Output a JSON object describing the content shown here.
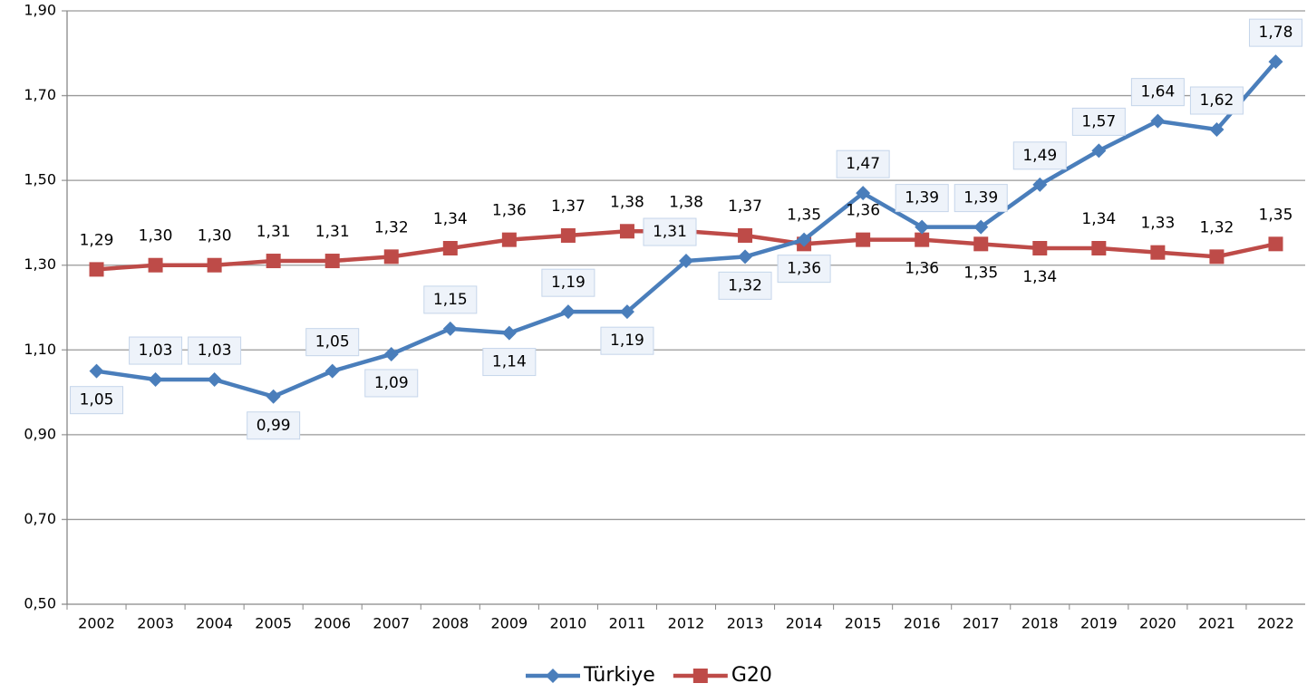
{
  "chart_data": {
    "type": "line",
    "categories": [
      "2002",
      "2003",
      "2004",
      "2005",
      "2006",
      "2007",
      "2008",
      "2009",
      "2010",
      "2011",
      "2012",
      "2013",
      "2014",
      "2015",
      "2016",
      "2017",
      "2018",
      "2019",
      "2020",
      "2021",
      "2022"
    ],
    "series": [
      {
        "name": "Türkiye",
        "color": "#4a7ebb",
        "marker": "diamond",
        "values": [
          1.05,
          1.03,
          1.03,
          0.99,
          1.05,
          1.09,
          1.15,
          1.14,
          1.19,
          1.19,
          1.31,
          1.32,
          1.36,
          1.47,
          1.39,
          1.39,
          1.49,
          1.57,
          1.64,
          1.62,
          1.78
        ],
        "value_labels": [
          "1,05",
          "1,03",
          "1,03",
          "0,99",
          "1,05",
          "1,09",
          "1,15",
          "1,14",
          "1,19",
          "1,19",
          "1,31",
          "1,32",
          "1,36",
          "1,47",
          "1,39",
          "1,39",
          "1,49",
          "1,57",
          "1,64",
          "1,62",
          "1,78"
        ]
      },
      {
        "name": "G20",
        "color": "#be4b48",
        "marker": "square",
        "values": [
          1.29,
          1.3,
          1.3,
          1.31,
          1.31,
          1.32,
          1.34,
          1.36,
          1.37,
          1.38,
          1.38,
          1.37,
          1.35,
          1.36,
          1.36,
          1.35,
          1.34,
          1.34,
          1.33,
          1.32,
          1.35
        ],
        "value_labels": [
          "1,29",
          "1,30",
          "1,30",
          "1,31",
          "1,31",
          "1,32",
          "1,34",
          "1,36",
          "1,37",
          "1,38",
          "1,38",
          "1,37",
          "1,35",
          "1,36",
          "1,36",
          "1,35",
          "1,34",
          "1,34",
          "1,33",
          "1,32",
          "1,35"
        ]
      }
    ],
    "ylim": [
      0.5,
      1.9
    ],
    "yticks": [
      {
        "value": 0.5,
        "label": "0,50"
      },
      {
        "value": 0.7,
        "label": "0,70"
      },
      {
        "value": 0.9,
        "label": "0,90"
      },
      {
        "value": 1.1,
        "label": "1,10"
      },
      {
        "value": 1.3,
        "label": "1,30"
      },
      {
        "value": 1.5,
        "label": "1,50"
      },
      {
        "value": 1.7,
        "label": "1,70"
      },
      {
        "value": 1.9,
        "label": "1,90"
      }
    ],
    "grid": true,
    "legend": "bottom"
  }
}
